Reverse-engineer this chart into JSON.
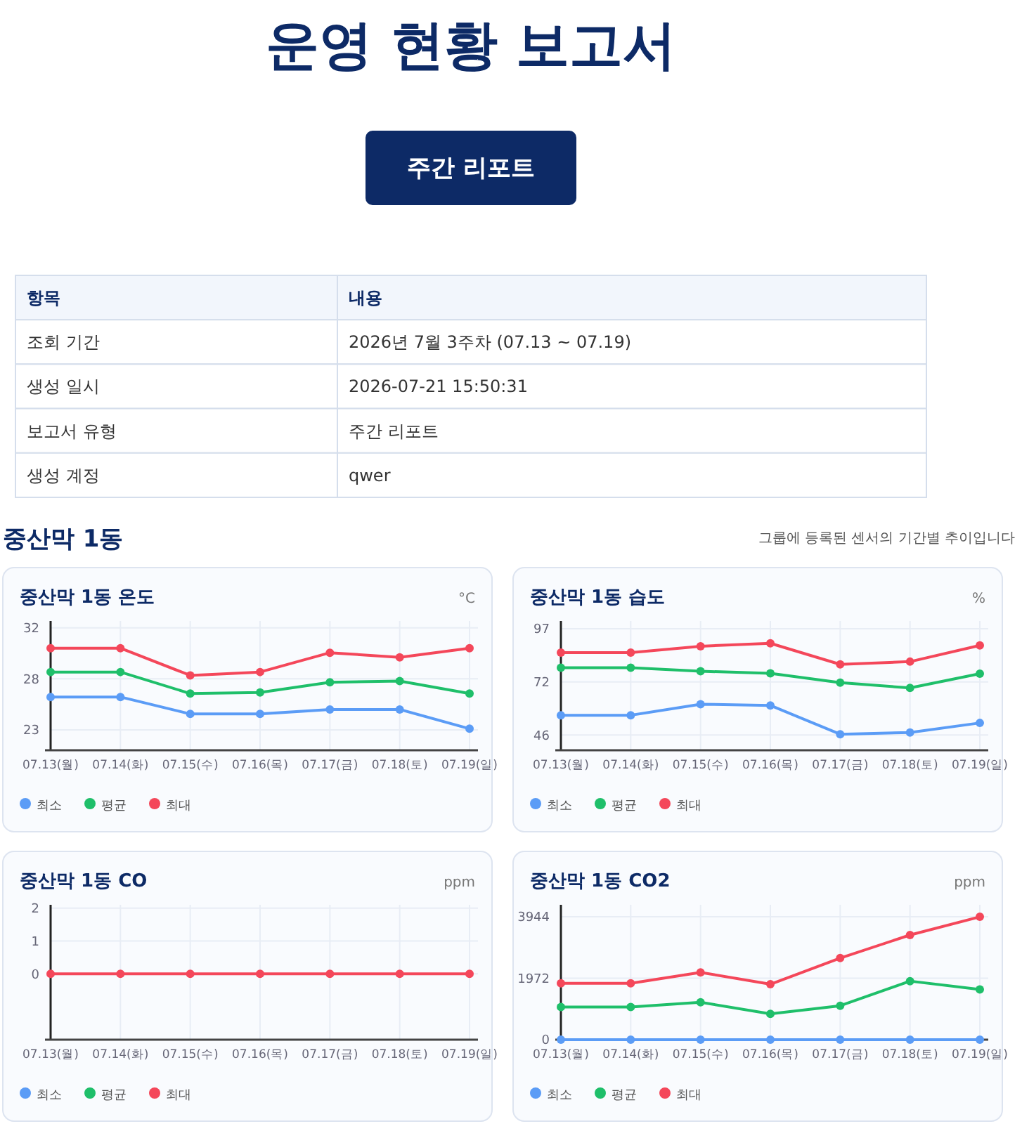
{
  "chart_data": [
    {
      "type": "other",
      "title": "운영 현황 보고서",
      "subtitle": "주간 리포트",
      "annotations": [
        "항목",
        "내용",
        "조회 기간",
        "2026년 7월 3주차 (07.13 ~ 07.19)",
        "생성 일시",
        "2026-07-21 15:50:31",
        "보고서 유형",
        "주간 리포트",
        "생성 계정",
        "qwer",
        "중산막 1동",
        "그룹에 등록된 센서의 기간별 추이입니다"
      ]
    },
    {
      "type": "line",
      "title": "중산막 1동 온도",
      "ylabel": "°C",
      "categories": [
        "07.13(월)",
        "07.14(화)",
        "07.15(수)",
        "07.16(목)",
        "07.17(금)",
        "07.18(토)",
        "07.19(일)"
      ],
      "ylim": [
        21.6,
        33
      ],
      "yticks": [
        {
          "value": 23.4,
          "label": "23"
        },
        {
          "value": 27.9,
          "label": "28"
        },
        {
          "value": 32.4,
          "label": "32"
        }
      ],
      "grid": true,
      "legend": "bottom left",
      "marker": "circle",
      "line_style": "solid",
      "series": [
        {
          "name": "최소",
          "color": "#5b9cf6",
          "values": [
            26.3,
            26.3,
            24.8,
            24.8,
            25.2,
            25.2,
            23.5
          ]
        },
        {
          "name": "평균",
          "color": "#1fbf6a",
          "values": [
            28.5,
            28.5,
            26.6,
            26.7,
            27.6,
            27.7,
            26.6
          ]
        },
        {
          "name": "최대",
          "color": "#f4475a",
          "values": [
            30.6,
            30.6,
            28.2,
            28.5,
            30.2,
            29.8,
            30.6
          ]
        }
      ]
    },
    {
      "type": "line",
      "title": "중산막 1동 습도",
      "ylabel": "%",
      "categories": [
        "07.13(월)",
        "07.14(화)",
        "07.15(수)",
        "07.16(목)",
        "07.17(금)",
        "07.18(토)",
        "07.19(일)"
      ],
      "ylim": [
        39,
        101
      ],
      "yticks": [
        {
          "value": 46.3,
          "label": "46"
        },
        {
          "value": 71.8,
          "label": "72"
        },
        {
          "value": 97.3,
          "label": "97"
        }
      ],
      "grid": true,
      "legend": "bottom left",
      "marker": "circle",
      "line_style": "solid",
      "series": [
        {
          "name": "최소",
          "color": "#5b9cf6",
          "values": [
            55.8,
            55.8,
            61.1,
            60.5,
            46.7,
            47.5,
            52.1
          ]
        },
        {
          "name": "평균",
          "color": "#1fbf6a",
          "values": [
            78.6,
            78.6,
            76.9,
            75.9,
            71.4,
            68.9,
            75.7
          ]
        },
        {
          "name": "최대",
          "color": "#f4475a",
          "values": [
            85.8,
            85.8,
            88.9,
            90.3,
            80.2,
            81.5,
            89.3
          ]
        }
      ]
    },
    {
      "type": "line",
      "title": "중산막 1동 CO",
      "ylabel": "ppm",
      "categories": [
        "07.13(월)",
        "07.14(화)",
        "07.15(수)",
        "07.16(목)",
        "07.17(금)",
        "07.18(토)",
        "07.19(일)"
      ],
      "ylim": [
        -2,
        2.1
      ],
      "yticks": [
        0,
        1,
        2
      ],
      "grid": true,
      "legend": "bottom left",
      "marker": "circle",
      "line_style": "solid",
      "series": [
        {
          "name": "최소",
          "color": "#5b9cf6",
          "values": [
            null,
            null,
            null,
            null,
            null,
            null,
            null
          ]
        },
        {
          "name": "평균",
          "color": "#1fbf6a",
          "values": [
            null,
            null,
            null,
            null,
            null,
            null,
            null
          ]
        },
        {
          "name": "최대",
          "color": "#f4475a",
          "values": [
            0,
            0,
            0,
            0,
            0,
            0,
            0
          ]
        }
      ]
    },
    {
      "type": "line",
      "title": "중산막 1동 CO2",
      "ylabel": "ppm",
      "categories": [
        "07.13(월)",
        "07.14(화)",
        "07.15(수)",
        "07.16(목)",
        "07.17(금)",
        "07.18(토)",
        "07.19(일)"
      ],
      "ylim": [
        0,
        4330
      ],
      "yticks": [
        0,
        1972,
        3944
      ],
      "grid": true,
      "legend": "bottom left",
      "marker": "circle",
      "line_style": "solid",
      "series": [
        {
          "name": "최소",
          "color": "#5b9cf6",
          "values": [
            0,
            0,
            0,
            0,
            0,
            0,
            0
          ]
        },
        {
          "name": "평균",
          "color": "#1fbf6a",
          "values": [
            1050,
            1050,
            1200,
            830,
            1090,
            1880,
            1610
          ]
        },
        {
          "name": "최대",
          "color": "#f4475a",
          "values": [
            1810,
            1810,
            2160,
            1780,
            2620,
            3360,
            3944
          ]
        }
      ]
    }
  ]
}
